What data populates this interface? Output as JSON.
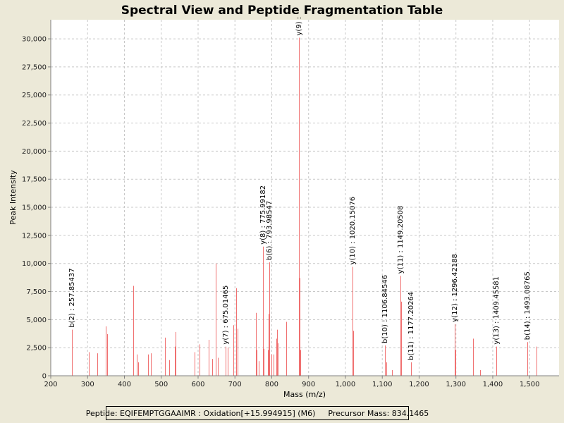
{
  "chart_data": {
    "type": "bar",
    "title": "Spectral View and Peptide Fragmentation Table",
    "xlabel": "Mass (m/z)",
    "ylabel": "Peak Intensity",
    "xlim": [
      200,
      1580
    ],
    "ylim": [
      0,
      31700
    ],
    "xticks": [
      200,
      300,
      400,
      500,
      600,
      700,
      800,
      900,
      1000,
      1100,
      1200,
      1300,
      1400,
      1500
    ],
    "xtick_labels": [
      "200",
      "300",
      "400",
      "500",
      "600",
      "700",
      "800",
      "900",
      "1,000",
      "1,100",
      "1,200",
      "1,300",
      "1,400",
      "1,500"
    ],
    "yticks": [
      0,
      2500,
      5000,
      7500,
      10000,
      12500,
      15000,
      17500,
      20000,
      22500,
      25000,
      27500,
      30000
    ],
    "ytick_labels": [
      "0",
      "2,500",
      "5,000",
      "7,500",
      "10,000",
      "12,500",
      "15,000",
      "17,500",
      "20,000",
      "22,500",
      "25,000",
      "27,500",
      "30,000"
    ],
    "grid": true,
    "peaks": [
      {
        "x": 257.85,
        "y": 4100
      },
      {
        "x": 304,
        "y": 2100
      },
      {
        "x": 327,
        "y": 2000
      },
      {
        "x": 349,
        "y": 4400
      },
      {
        "x": 353,
        "y": 3700
      },
      {
        "x": 423,
        "y": 1700
      },
      {
        "x": 424,
        "y": 8000
      },
      {
        "x": 434,
        "y": 1900
      },
      {
        "x": 437,
        "y": 1200
      },
      {
        "x": 465,
        "y": 1900
      },
      {
        "x": 472,
        "y": 2000
      },
      {
        "x": 511,
        "y": 3400
      },
      {
        "x": 522,
        "y": 1400
      },
      {
        "x": 537,
        "y": 2600
      },
      {
        "x": 538,
        "y": 3900
      },
      {
        "x": 590,
        "y": 2100
      },
      {
        "x": 603,
        "y": 2800
      },
      {
        "x": 628,
        "y": 3200
      },
      {
        "x": 638,
        "y": 1500
      },
      {
        "x": 648,
        "y": 10000
      },
      {
        "x": 653,
        "y": 1600
      },
      {
        "x": 675.01,
        "y": 2600
      },
      {
        "x": 680,
        "y": 2500
      },
      {
        "x": 696,
        "y": 4500
      },
      {
        "x": 703,
        "y": 7800
      },
      {
        "x": 707,
        "y": 4200
      },
      {
        "x": 757,
        "y": 5600
      },
      {
        "x": 758,
        "y": 2300
      },
      {
        "x": 765,
        "y": 1300
      },
      {
        "x": 775.99,
        "y": 11500
      },
      {
        "x": 778,
        "y": 2400
      },
      {
        "x": 790,
        "y": 2300
      },
      {
        "x": 792,
        "y": 5500
      },
      {
        "x": 793.99,
        "y": 10100
      },
      {
        "x": 800,
        "y": 1900
      },
      {
        "x": 804,
        "y": 1900
      },
      {
        "x": 813,
        "y": 3300
      },
      {
        "x": 815,
        "y": 4100
      },
      {
        "x": 817,
        "y": 2900
      },
      {
        "x": 840,
        "y": 4800
      },
      {
        "x": 873,
        "y": 30100
      },
      {
        "x": 875,
        "y": 8700
      },
      {
        "x": 877,
        "y": 2300
      },
      {
        "x": 1020.15,
        "y": 9700
      },
      {
        "x": 1022,
        "y": 4000
      },
      {
        "x": 1106.85,
        "y": 2700
      },
      {
        "x": 1111,
        "y": 1200
      },
      {
        "x": 1126,
        "y": 500
      },
      {
        "x": 1149.21,
        "y": 8900
      },
      {
        "x": 1151,
        "y": 6600
      },
      {
        "x": 1177.2,
        "y": 1200
      },
      {
        "x": 1296.42,
        "y": 4600
      },
      {
        "x": 1298,
        "y": 2300
      },
      {
        "x": 1346,
        "y": 3300
      },
      {
        "x": 1366,
        "y": 500
      },
      {
        "x": 1409.46,
        "y": 2600
      },
      {
        "x": 1493.09,
        "y": 3000
      },
      {
        "x": 1519,
        "y": 2600
      }
    ],
    "annotations": [
      {
        "x": 257.85,
        "y": 4100,
        "label": "b(2) : 257.85437"
      },
      {
        "x": 675.01,
        "y": 2600,
        "label": "y(7) : 675.01465"
      },
      {
        "x": 775.99,
        "y": 11500,
        "label": "y(8) : 775.99182"
      },
      {
        "x": 793.99,
        "y": 10100,
        "label": "b(6) : 793.98547"
      },
      {
        "x": 873,
        "y": 30100,
        "label": "y(9) :"
      },
      {
        "x": 1020.15,
        "y": 9700,
        "label": "y(10) : 1020.15076"
      },
      {
        "x": 1106.85,
        "y": 2700,
        "label": "b(10) : 1106.84546"
      },
      {
        "x": 1149.21,
        "y": 8900,
        "label": "y(11) : 1149.20508"
      },
      {
        "x": 1177.2,
        "y": 1200,
        "label": "b(11) : 1177.20264"
      },
      {
        "x": 1296.42,
        "y": 4600,
        "label": "y(12) : 1296.42188"
      },
      {
        "x": 1409.46,
        "y": 2600,
        "label": "y(13) : 1409.45581"
      },
      {
        "x": 1493.09,
        "y": 3000,
        "label": "b(14) : 1493.08765"
      }
    ]
  },
  "footer": {
    "peptide": "Peptide: EQIFEMPTGGAAIMR : Oxidation[+15.994915] (M6)",
    "precursor": "Precursor Mass: 834.1465"
  },
  "colors": {
    "peak": "#f07070",
    "background": "#ece9d8",
    "plot_background": "#ffffff"
  }
}
